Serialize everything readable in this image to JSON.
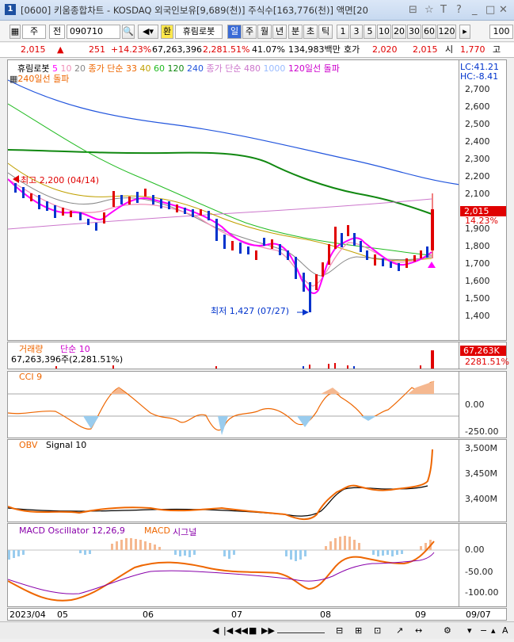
{
  "window": {
    "number": "1",
    "title": "[0600] 키움종합차트 - KOSDAQ 외국인보유[9,689(천)] 주식수[163,776(천)] 액면[20",
    "controls": [
      "⊟",
      "☆",
      "T",
      "?",
      "_",
      "□",
      "✕"
    ]
  },
  "toolbar": {
    "type": "주",
    "code_prefix": "전",
    "code": "090710",
    "fx": "환",
    "stock_name": "휴림로봇",
    "periods": [
      "일",
      "주",
      "월",
      "년",
      "분",
      "초",
      "틱"
    ],
    "intervals": [
      "1",
      "3",
      "5",
      "10",
      "20",
      "30",
      "60",
      "120"
    ],
    "count": "100"
  },
  "quote": {
    "price": "2,015",
    "arrow": "▲",
    "change": "251",
    "pct": "+14.23%",
    "volume": "67,263,396",
    "vol_ratio": "2,281.51%",
    "turnover": "41.07%",
    "amount": "134,983백만",
    "bid_label": "호가",
    "bid": "2,020",
    "ask": "2,015",
    "open_label": "시",
    "open": "1,770",
    "high_label": "고"
  },
  "price_pane": {
    "legend": {
      "name": "휴림로봇",
      "ma1": "5",
      "ma2": "10",
      "ma3": "20",
      "ma_label": "종가 단순 33",
      "ma4": "40",
      "ma5": "60",
      "ma6": "120",
      "ma7": "240",
      "ma8_label": "종가 단순 480",
      "ma9": "1000",
      "break120": "120일선 돌파",
      "break240": "240일선 돌파"
    },
    "lc": "LC:41.21",
    "hc": "HC:-8.41",
    "high_note": "최고 2,200 (04/14)",
    "low_note": "최저 1,427 (07/27)",
    "current": "2,015",
    "current_pct": "14.23%",
    "ticks": [
      "2,700",
      "2,600",
      "2,500",
      "2,400",
      "2,300",
      "2,200",
      "2,100",
      "2,000",
      "1,900",
      "1,800",
      "1,700",
      "1,600",
      "1,500",
      "1,400"
    ]
  },
  "volume_pane": {
    "legend": {
      "name": "거래량",
      "type": "단순 10"
    },
    "value": "67,263,396주(2,281.51%)",
    "current": "67,263K",
    "current_pct": "2281.51%"
  },
  "cci_pane": {
    "legend": "CCI 9",
    "ticks": [
      "0.00",
      "-250.00"
    ]
  },
  "obv_pane": {
    "legend": {
      "name": "OBV",
      "signal": "Signal 10"
    },
    "ticks": [
      "3,500M",
      "3,450M",
      "3,400M"
    ]
  },
  "macd_pane": {
    "legend": {
      "name": "MACD Oscillator 12,26,9",
      "macd": "MACD",
      "signal": "시그널"
    },
    "ticks": [
      "0.00",
      "-50.00",
      "-100.00"
    ]
  },
  "xaxis": {
    "labels": [
      "2023/04",
      "05",
      "06",
      "07",
      "08",
      "09",
      "09/07"
    ]
  },
  "colors": {
    "up": "#e00000",
    "down": "#0033cc",
    "ma5": "#ff00ff",
    "ma10": "#f08fb8",
    "ma20": "#888888",
    "ma40": "#c0a000",
    "ma60": "#22bb22",
    "ma120": "#118811",
    "ma240": "#2255dd",
    "ma480": "#cc77cc",
    "obv": "#ee6600",
    "macd": "#ee6600",
    "signal": "#8800aa"
  }
}
